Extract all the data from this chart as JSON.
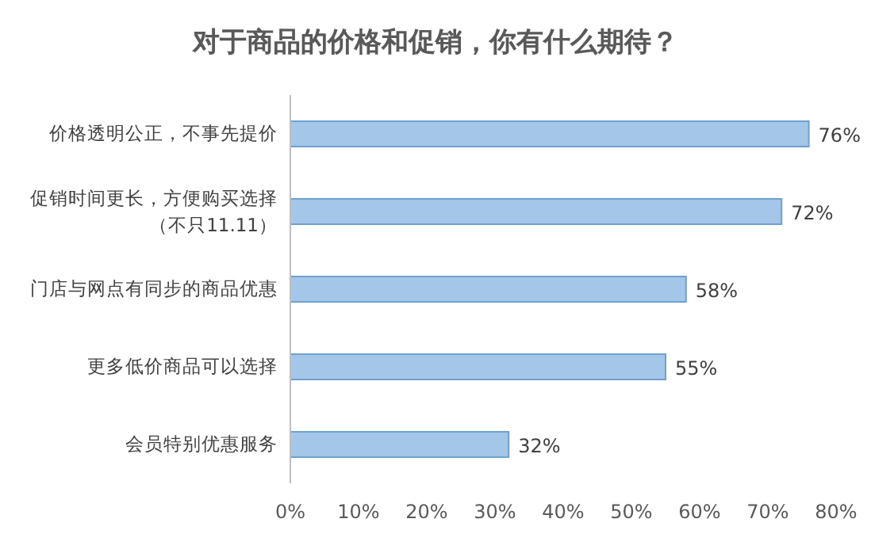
{
  "chart_data": {
    "type": "bar",
    "orientation": "horizontal",
    "title": "对于商品的价格和促销，你有什么期待？",
    "categories": [
      "价格透明公正，不事先提价",
      "促销时间更长，方便购买选择（不只11.11）",
      "门店与网点有同步的商品优惠",
      "更多低价商品可以选择",
      "会员特别优惠服务"
    ],
    "values": [
      76,
      72,
      58,
      55,
      32
    ],
    "value_labels": [
      "76%",
      "72%",
      "58%",
      "55%",
      "32%"
    ],
    "color": "#a4c6e9",
    "xlim": [
      0,
      80
    ],
    "xticks": [
      {
        "value": 0,
        "label": "0%"
      },
      {
        "value": 10,
        "label": "10%"
      },
      {
        "value": 20,
        "label": "20%"
      },
      {
        "value": 30,
        "label": "30%"
      },
      {
        "value": 40,
        "label": "40%"
      },
      {
        "value": 50,
        "label": "50%"
      },
      {
        "value": 60,
        "label": "60%"
      },
      {
        "value": 70,
        "label": "70%"
      },
      {
        "value": 80,
        "label": "80%"
      }
    ]
  }
}
